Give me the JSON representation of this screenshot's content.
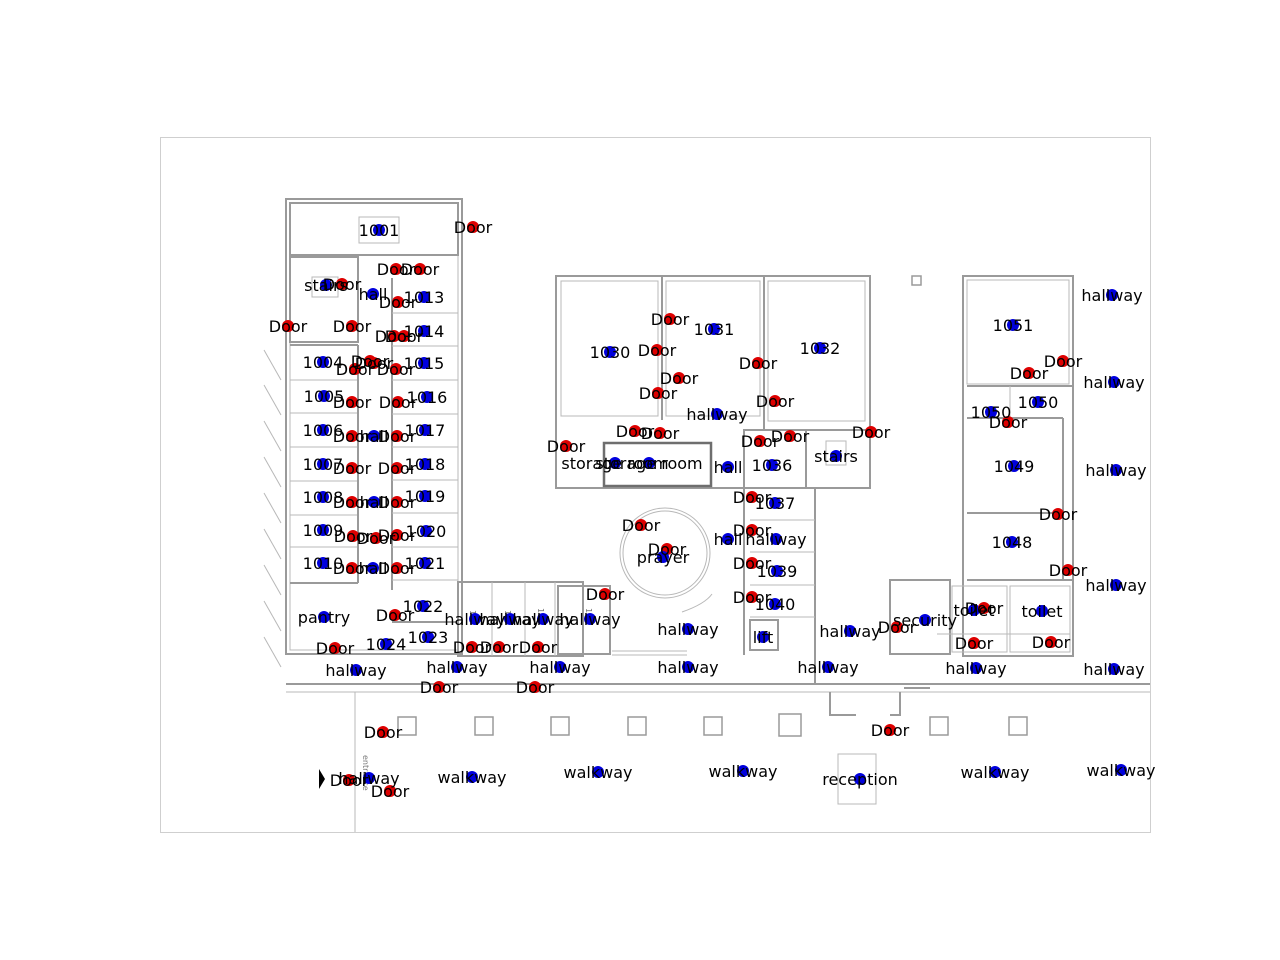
{
  "map": {
    "legend_colors": {
      "node": "#0000dd",
      "door": "#dd0000"
    },
    "labels": {
      "room_1001": "1001",
      "room_1004": "1004",
      "room_1005": "1005",
      "room_1006": "1006",
      "room_1007": "1007",
      "room_1008": "1008",
      "room_1009": "1009",
      "room_1010": "1010",
      "room_1013": "1013",
      "room_1014": "1014",
      "room_1015": "1015",
      "room_1016": "1016",
      "room_1017": "1017",
      "room_1018": "1018",
      "room_1019": "1019",
      "room_1020": "1020",
      "room_1021": "1021",
      "room_1022": "1022",
      "room_1023": "1023",
      "room_1024": "1024",
      "room_1030": "1030",
      "room_1031": "1031",
      "room_1032": "1032",
      "room_1036": "1036",
      "room_1037": "1037",
      "room_1039": "1039",
      "room_1040": "1040",
      "room_1048": "1048",
      "room_1049": "1049",
      "room_1050a": "1050",
      "room_1050b": "1050",
      "room_1051": "1051",
      "stairs": "stairs",
      "hall": "hall",
      "door": "Door",
      "hallway": "hallway",
      "walkway": "walkway",
      "pantry": "pantry",
      "storage_room": "storage room",
      "prayer": "prayer",
      "lift": "lift",
      "security": "security",
      "toilet": "toilet",
      "reception": "reception",
      "entrance": "entrance",
      "tiny_104": "104",
      "tiny_105": "105",
      "tiny_106": "106",
      "tiny_107": "107"
    }
  }
}
